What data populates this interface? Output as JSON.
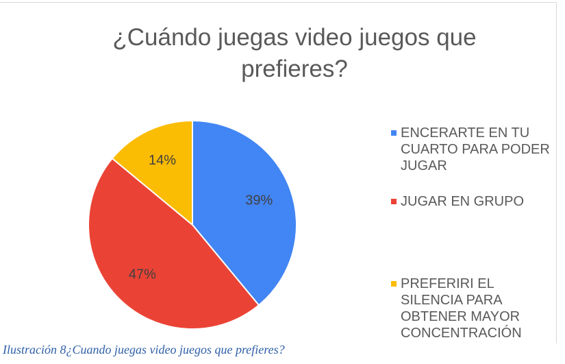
{
  "chart_data": {
    "type": "pie",
    "title": "¿Cuándo juegas video juegos que prefieres?",
    "categories": [
      "ENCERARTE EN TU CUARTO PARA PODER JUGAR",
      "JUGAR EN GRUPO",
      "PREFERIRI EL SILENCIA PARA OBTENER MAYOR CONCENTRACIÓN"
    ],
    "values": [
      39,
      47,
      14
    ],
    "value_labels": [
      "39%",
      "47%",
      "14%"
    ],
    "colors": [
      "#4285f4",
      "#ea4335",
      "#fbbc04"
    ],
    "legend": "right"
  },
  "caption": "Ilustración 8¿Cuando juegas video juegos que prefieres?"
}
